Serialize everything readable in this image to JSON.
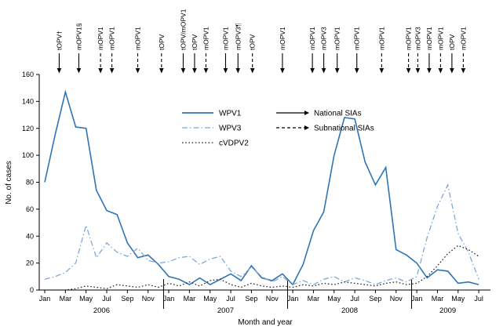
{
  "chart_data": {
    "type": "line",
    "title": "",
    "xlabel": "Month and year",
    "ylabel": "No. of cases",
    "ylim": [
      0,
      160
    ],
    "ytick_step": 20,
    "grid": false,
    "years": [
      {
        "label": "2006",
        "months": 12
      },
      {
        "label": "2007",
        "months": 12
      },
      {
        "label": "2008",
        "months": 12
      },
      {
        "label": "2009",
        "months": 7
      }
    ],
    "month_tick_labels": [
      "Jan",
      "Mar",
      "May",
      "Jul",
      "Sep",
      "Nov"
    ],
    "series": [
      {
        "name": "WPV1",
        "color": "#2f74b3",
        "style": "solid",
        "values": [
          80,
          115,
          147,
          121,
          120,
          74,
          59,
          56,
          35,
          24,
          26,
          19,
          10,
          8,
          4,
          9,
          4,
          8,
          12,
          7,
          18,
          9,
          7,
          12,
          4,
          19,
          44,
          58,
          100,
          128,
          127,
          95,
          78,
          91,
          30,
          26,
          20,
          9,
          15,
          14,
          5,
          6,
          4
        ]
      },
      {
        "name": "WPV3",
        "color": "#7aa7d6",
        "style": "dashdot",
        "values": [
          8,
          10,
          13,
          20,
          48,
          24,
          35,
          28,
          25,
          31,
          22,
          20,
          21,
          24,
          25,
          19,
          23,
          25,
          14,
          10,
          17,
          10,
          6,
          10,
          4,
          7,
          4,
          8,
          10,
          6,
          9,
          7,
          4,
          7,
          9,
          6,
          10,
          39,
          62,
          78,
          42,
          28,
          8
        ]
      },
      {
        "name": "cVDPV2",
        "color": "#222222",
        "style": "dotted",
        "values": [
          0,
          0,
          0,
          1,
          3,
          2,
          1,
          4,
          3,
          2,
          4,
          2,
          5,
          3,
          6,
          3,
          7,
          8,
          4,
          2,
          5,
          3,
          2,
          3,
          2,
          4,
          3,
          5,
          4,
          6,
          5,
          4,
          3,
          5,
          6,
          4,
          5,
          10,
          18,
          27,
          33,
          30,
          25
        ]
      }
    ],
    "sia_legend": [
      {
        "label": "National SIAs",
        "style": "solid"
      },
      {
        "label": "Subnational SIAs",
        "style": "dashed"
      }
    ],
    "sia_events": [
      {
        "label": "tOPV†",
        "type": "national",
        "month": 1.4
      },
      {
        "label": "mOPV1§",
        "type": "national",
        "month": 3.3
      },
      {
        "label": "mOPV1",
        "type": "subnational",
        "month": 5.4
      },
      {
        "label": "mOPV1",
        "type": "subnational",
        "month": 6.5
      },
      {
        "label": "mOPV1",
        "type": "subnational",
        "month": 9.0
      },
      {
        "label": "tOPV",
        "type": "subnational",
        "month": 11.3
      },
      {
        "label": "tOPV/mOPV1",
        "type": "national",
        "month": 13.4
      },
      {
        "label": "tOPV",
        "type": "national",
        "month": 14.5
      },
      {
        "label": "mOPV1",
        "type": "subnational",
        "month": 15.6
      },
      {
        "label": "mOPV1",
        "type": "national",
        "month": 17.5
      },
      {
        "label": "mOPV3¶",
        "type": "national",
        "month": 18.7
      },
      {
        "label": "tOPV",
        "type": "subnational",
        "month": 20.1
      },
      {
        "label": "mOPV1",
        "type": "national",
        "month": 23.0
      },
      {
        "label": "mOPV1",
        "type": "national",
        "month": 25.9
      },
      {
        "label": "mOPV3",
        "type": "national",
        "month": 27.0
      },
      {
        "label": "mOPV1",
        "type": "national",
        "month": 28.3
      },
      {
        "label": "mOPV1",
        "type": "national",
        "month": 30.2
      },
      {
        "label": "mOPV1",
        "type": "subnational",
        "month": 32.6
      },
      {
        "label": "mOPV1",
        "type": "subnational",
        "month": 35.2
      },
      {
        "label": "mOPV3",
        "type": "subnational",
        "month": 36.1
      },
      {
        "label": "mOPV1",
        "type": "national",
        "month": 37.2
      },
      {
        "label": "mOPV1",
        "type": "subnational",
        "month": 38.3
      },
      {
        "label": "tOPV",
        "type": "national",
        "month": 39.4
      },
      {
        "label": "mOPV1",
        "type": "subnational",
        "month": 40.5
      }
    ]
  }
}
